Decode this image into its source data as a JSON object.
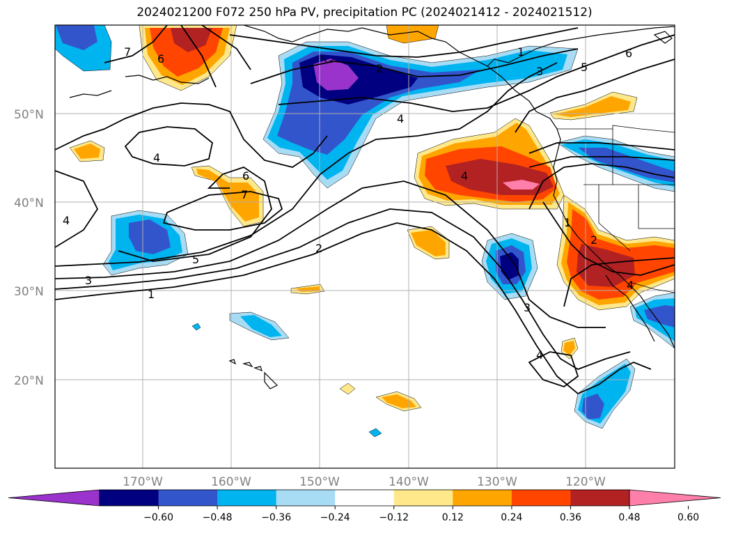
{
  "title": "2024021200 F072 250 hPa PV, precipitation PC (2024021412 - 2024021512)",
  "lat_labels": [
    "50°N",
    "40°N",
    "30°N",
    "20°N"
  ],
  "lon_labels": [
    "170°W",
    "160°W",
    "150°W",
    "140°W",
    "130°W",
    "120°W"
  ],
  "colorbar": {
    "ticks": [
      "−0.60",
      "−0.48",
      "−0.36",
      "−0.24",
      "−0.12",
      "0.12",
      "0.24",
      "0.36",
      "0.48",
      "0.60"
    ],
    "colors": [
      "#9933cc",
      "#000080",
      "#3355cc",
      "#00b4f0",
      "#a8dcf5",
      "#ffffff",
      "#ffe88a",
      "#ffa500",
      "#ff4500",
      "#b22222",
      "#ff7fab"
    ]
  },
  "contour_labels": [
    "7",
    "6",
    "2",
    "4",
    "4",
    "6",
    "7",
    "5",
    "3",
    "1",
    "2",
    "4",
    "1",
    "3",
    "5",
    "6",
    "4",
    "1",
    "2",
    "3",
    "4",
    "4"
  ]
}
